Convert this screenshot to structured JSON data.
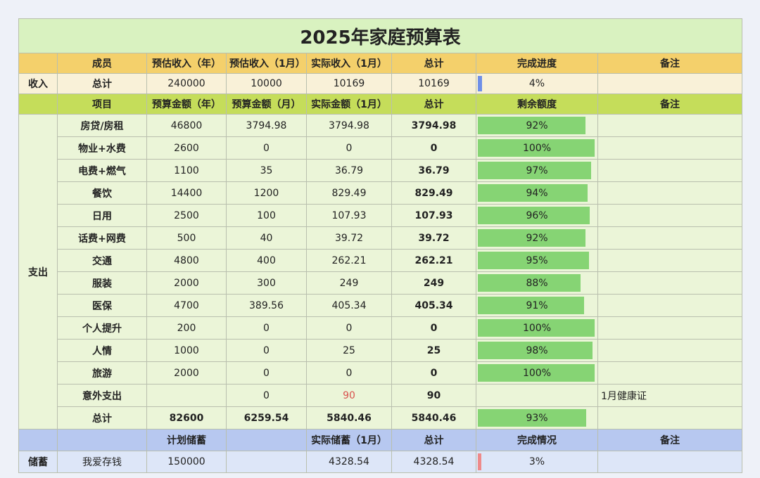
{
  "title": "2025年家庭预算表",
  "income_header": [
    "",
    "成员",
    "预估收入（年）",
    "预估收入（1月）",
    "实际收入（1月）",
    "总计",
    "完成进度",
    "备注"
  ],
  "income_section": "收入",
  "income_row": {
    "member": "总计",
    "est_year": "240000",
    "est_month": "10000",
    "actual": "10169",
    "total": "10169",
    "progress": "4%",
    "progress_value": 0.04,
    "note": ""
  },
  "expense_header": [
    "",
    "项目",
    "预算金额（年）",
    "预算金额（月）",
    "实际金额（1月）",
    "总计",
    "剩余额度",
    "备注"
  ],
  "expense_section": "支出",
  "expense_rows": [
    {
      "item": "房贷/房租",
      "year": "46800",
      "month": "3794.98",
      "actual": "3794.98",
      "total": "3794.98",
      "remain": "92%",
      "remain_value": 0.92,
      "note": ""
    },
    {
      "item": "物业+水费",
      "year": "2600",
      "month": "0",
      "actual": "0",
      "total": "0",
      "remain": "100%",
      "remain_value": 1.0,
      "note": ""
    },
    {
      "item": "电费+燃气",
      "year": "1100",
      "month": "35",
      "actual": "36.79",
      "total": "36.79",
      "remain": "97%",
      "remain_value": 0.97,
      "note": ""
    },
    {
      "item": "餐饮",
      "year": "14400",
      "month": "1200",
      "actual": "829.49",
      "total": "829.49",
      "remain": "94%",
      "remain_value": 0.94,
      "note": ""
    },
    {
      "item": "日用",
      "year": "2500",
      "month": "100",
      "actual": "107.93",
      "total": "107.93",
      "remain": "96%",
      "remain_value": 0.96,
      "note": ""
    },
    {
      "item": "话费+网费",
      "year": "500",
      "month": "40",
      "actual": "39.72",
      "total": "39.72",
      "remain": "92%",
      "remain_value": 0.92,
      "note": ""
    },
    {
      "item": "交通",
      "year": "4800",
      "month": "400",
      "actual": "262.21",
      "total": "262.21",
      "remain": "95%",
      "remain_value": 0.95,
      "note": ""
    },
    {
      "item": "服装",
      "year": "2000",
      "month": "300",
      "actual": "249",
      "total": "249",
      "remain": "88%",
      "remain_value": 0.88,
      "note": ""
    },
    {
      "item": "医保",
      "year": "4700",
      "month": "389.56",
      "actual": "405.34",
      "total": "405.34",
      "remain": "91%",
      "remain_value": 0.91,
      "note": ""
    },
    {
      "item": "个人提升",
      "year": "200",
      "month": "0",
      "actual": "0",
      "total": "0",
      "remain": "100%",
      "remain_value": 1.0,
      "note": ""
    },
    {
      "item": "人情",
      "year": "1000",
      "month": "0",
      "actual": "25",
      "total": "25",
      "remain": "98%",
      "remain_value": 0.98,
      "note": ""
    },
    {
      "item": "旅游",
      "year": "2000",
      "month": "0",
      "actual": "0",
      "total": "0",
      "remain": "100%",
      "remain_value": 1.0,
      "note": ""
    },
    {
      "item": "意外支出",
      "year": "",
      "month": "0",
      "actual": "90",
      "total": "90",
      "remain": "",
      "remain_value": 0,
      "note": "1月健康证",
      "actual_color": "#d9534f"
    }
  ],
  "expense_total": {
    "item": "总计",
    "year": "82600",
    "month": "6259.54",
    "actual": "5840.46",
    "total": "5840.46",
    "remain": "93%",
    "remain_value": 0.93,
    "note": ""
  },
  "savings_header": [
    "",
    "",
    "计划储蓄",
    "",
    "实际储蓄（1月）",
    "总计",
    "完成情况",
    "备注"
  ],
  "savings_section": "储蓄",
  "savings_row": {
    "name": "我爱存钱",
    "plan": "150000",
    "blank": "",
    "actual": "4328.54",
    "total": "4328.54",
    "progress": "3%",
    "progress_value": 0.03,
    "note": ""
  },
  "colors": {
    "title_bg": "#d9f2c0",
    "income_head": "#f4d06b",
    "expense_head": "#c5dd5a",
    "savings_head": "#b7c8f0",
    "bar_green": "#86d474",
    "bar_blue": "#6f8fe8",
    "bar_pink": "#ee8a8a"
  }
}
